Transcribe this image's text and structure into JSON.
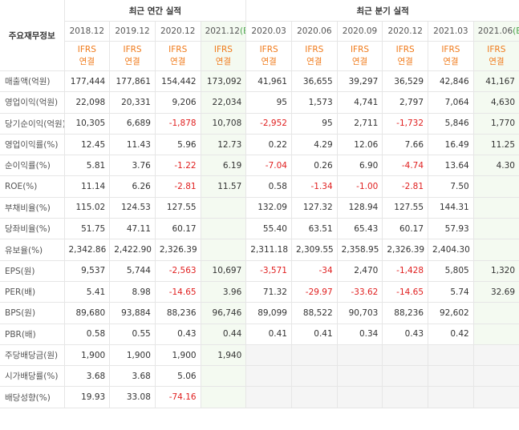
{
  "header": {
    "title": "주요재무정보",
    "annual": "최근 연간 실적",
    "quarterly": "최근 분기 실적"
  },
  "periods": [
    {
      "date": "2018.12"
    },
    {
      "date": "2019.12"
    },
    {
      "date": "2020.12"
    },
    {
      "date": "2021.12",
      "mark": "(E)"
    },
    {
      "date": "2020.03"
    },
    {
      "date": "2020.06"
    },
    {
      "date": "2020.09"
    },
    {
      "date": "2020.12"
    },
    {
      "date": "2021.03"
    },
    {
      "date": "2021.06",
      "mark": "(E)"
    }
  ],
  "standard": [
    "IFRS",
    "연결"
  ],
  "sections": [
    {
      "rows": [
        {
          "label": "매출액(억원)",
          "values": [
            "177,444",
            "177,861",
            "154,442",
            "173,092",
            "41,961",
            "36,655",
            "39,297",
            "36,529",
            "42,846",
            "41,167"
          ]
        },
        {
          "label": "영업이익(억원)",
          "values": [
            "22,098",
            "20,331",
            "9,206",
            "22,034",
            "95",
            "1,573",
            "4,741",
            "2,797",
            "7,064",
            "4,630"
          ]
        },
        {
          "label": "당기순이익(억원)",
          "values": [
            "10,305",
            "6,689",
            "-1,878",
            "10,708",
            "-2,952",
            "95",
            "2,711",
            "-1,732",
            "5,846",
            "1,770"
          ]
        }
      ]
    },
    {
      "rows": [
        {
          "label": "영업이익률(%)",
          "values": [
            "12.45",
            "11.43",
            "5.96",
            "12.73",
            "0.22",
            "4.29",
            "12.06",
            "7.66",
            "16.49",
            "11.25"
          ]
        },
        {
          "label": "순이익률(%)",
          "values": [
            "5.81",
            "3.76",
            "-1.22",
            "6.19",
            "-7.04",
            "0.26",
            "6.90",
            "-4.74",
            "13.64",
            "4.30"
          ]
        },
        {
          "label": "ROE(%)",
          "values": [
            "11.14",
            "6.26",
            "-2.81",
            "11.57",
            "0.58",
            "-1.34",
            "-1.00",
            "-2.81",
            "7.50",
            null
          ]
        }
      ]
    },
    {
      "rows": [
        {
          "label": "부채비율(%)",
          "values": [
            "115.02",
            "124.53",
            "127.55",
            null,
            "132.09",
            "127.32",
            "128.94",
            "127.55",
            "144.31",
            null
          ]
        },
        {
          "label": "당좌비율(%)",
          "values": [
            "51.75",
            "47.11",
            "60.17",
            null,
            "55.40",
            "63.51",
            "65.43",
            "60.17",
            "57.93",
            null
          ]
        },
        {
          "label": "유보율(%)",
          "values": [
            "2,342.86",
            "2,422.90",
            "2,326.39",
            null,
            "2,311.18",
            "2,309.55",
            "2,358.95",
            "2,326.39",
            "2,404.30",
            null
          ]
        }
      ]
    },
    {
      "rows": [
        {
          "label": "EPS(원)",
          "values": [
            "9,537",
            "5,744",
            "-2,563",
            "10,697",
            "-3,571",
            "-34",
            "2,470",
            "-1,428",
            "5,805",
            "1,320"
          ]
        },
        {
          "label": "PER(배)",
          "values": [
            "5.41",
            "8.98",
            "-14.65",
            "3.96",
            "71.32",
            "-29.97",
            "-33.62",
            "-14.65",
            "5.74",
            "32.69"
          ]
        },
        {
          "label": "BPS(원)",
          "values": [
            "89,680",
            "93,884",
            "88,236",
            "96,746",
            "89,099",
            "88,522",
            "90,703",
            "88,236",
            "92,602",
            null
          ]
        },
        {
          "label": "PBR(배)",
          "values": [
            "0.58",
            "0.55",
            "0.43",
            "0.44",
            "0.41",
            "0.41",
            "0.34",
            "0.43",
            "0.42",
            null
          ]
        }
      ]
    },
    {
      "rows": [
        {
          "label": "주당배당금(원)",
          "values": [
            "1,900",
            "1,900",
            "1,900",
            "1,940",
            null,
            null,
            null,
            null,
            null,
            null
          ]
        },
        {
          "label": "시가배당률(%)",
          "values": [
            "3.68",
            "3.68",
            "5.06",
            null,
            null,
            null,
            null,
            null,
            null,
            null
          ]
        },
        {
          "label": "배당성향(%)",
          "values": [
            "19.93",
            "33.08",
            "-74.16",
            null,
            null,
            null,
            null,
            null,
            null,
            null
          ]
        }
      ]
    }
  ]
}
